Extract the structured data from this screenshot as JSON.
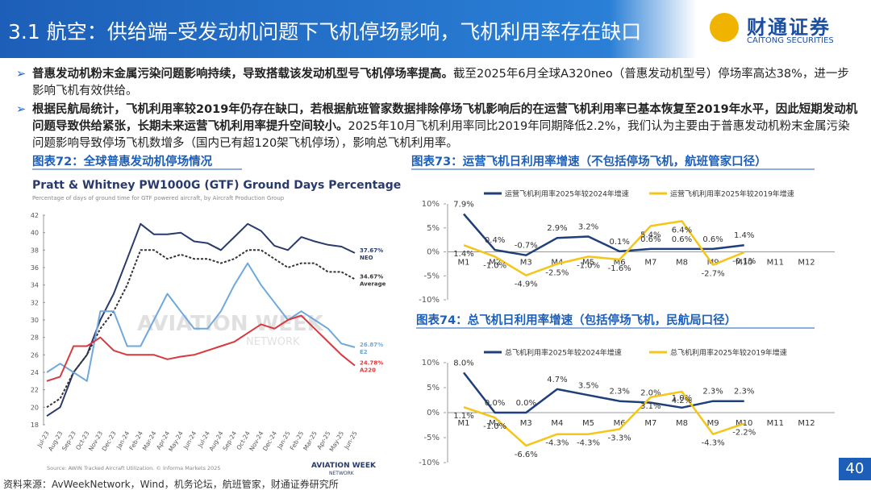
{
  "header": {
    "title": "3.1 航空：供给端–受发动机问题下飞机停场影响，飞机利用率存在缺口",
    "logo_cn": "财通证券",
    "logo_en": "CAITONG SECURITIES"
  },
  "bullets": [
    {
      "bold": "普惠发动机粉末金属污染问题影响持续，导致搭载该发动机型号飞机停场率提高。",
      "text": "截至2025年6月全球A320neo（普惠发动机型号）停场率高达38%，进一步影响飞机有效供给。"
    },
    {
      "bold": "根据民航局统计，飞机利用率较2019年仍存在缺口，若根据航班管家数据排除停场飞机影响后的在运营飞机利用率已基本恢复至2019年水平，因此短期发动机问题导致供给紧张，长期未来运营飞机利用率提升空间较小。",
      "text": "2025年10月飞机利用率同比2019年同期降低2.2%，我们认为主要由于普惠发动机粉末金属污染问题影响导致停场飞机数增多（国内已有超120架飞机停场），影响总飞机利用率。"
    }
  ],
  "chart_data": [
    {
      "type": "line",
      "caption": "图表72：全球普惠发动机停场情况",
      "title": "Pratt & Whitney PW1000G (GTF) Ground Days Percentage",
      "subtitle": "Percentage of days of ground time for GTF powered aircraft, by Aircraft Production Group",
      "watermark": "AVIATION WEEK",
      "watermark_sub": "NETWORK",
      "source": "Source: AWIN Tracked Aircraft Utilization. © Informa Markets 2025",
      "logo": "AVIATION WEEK",
      "logo_sub": "NETWORK",
      "categories": [
        "Jul-23",
        "Aug-23",
        "Sep-23",
        "Oct-23",
        "Nov-23",
        "Dec-23",
        "Jan-24",
        "Feb-24",
        "Mar-24",
        "Apr-24",
        "May-24",
        "Jun-24",
        "Jul-24",
        "Aug-24",
        "Sep-24",
        "Oct-24",
        "Nov-24",
        "Dec-24",
        "Jan-25",
        "Feb-25",
        "Mar-25",
        "Apr-25",
        "May-25",
        "Jun-25"
      ],
      "series": [
        {
          "name": "NEO",
          "color": "#2a3b6b",
          "end_label": "37.67%",
          "values": [
            19,
            20,
            24,
            26,
            30,
            33,
            37,
            41,
            39.8,
            39.8,
            40,
            39,
            38.8,
            38,
            39.5,
            41,
            40.2,
            38.5,
            38,
            39.5,
            39,
            38.6,
            38.4,
            37.67
          ]
        },
        {
          "name": "Average",
          "color": "#333333",
          "style": "dashed",
          "end_label": "34.67%",
          "values": [
            20,
            21,
            24,
            26,
            29,
            31,
            34,
            38,
            38,
            37,
            37.5,
            37,
            37,
            36.5,
            37,
            38,
            38,
            37,
            36,
            36.5,
            36.5,
            35.5,
            35.5,
            34.67
          ]
        },
        {
          "name": "E2",
          "color": "#6fa8dc",
          "end_label": "26.87%",
          "values": [
            24,
            25,
            24,
            23,
            31,
            31,
            27,
            27,
            30,
            33,
            31,
            29,
            29,
            31,
            34,
            36.5,
            34,
            32,
            30,
            31,
            30,
            29,
            27.3,
            26.87
          ]
        },
        {
          "name": "A220",
          "color": "#d9393e",
          "end_label": "24.78%",
          "values": [
            23,
            23.5,
            27,
            27,
            28,
            26.5,
            26,
            26,
            26,
            25.5,
            25.8,
            26,
            26.5,
            27,
            27.5,
            28.5,
            29.5,
            29,
            30,
            30.5,
            29,
            27.5,
            26,
            24.78
          ]
        }
      ],
      "ylim": [
        18,
        42
      ],
      "yticks": [
        18,
        20,
        22,
        24,
        26,
        28,
        30,
        32,
        34,
        36,
        38,
        40,
        42
      ],
      "grid": false
    },
    {
      "type": "line",
      "caption": "图表73：运营飞机日利用率增速（不包括停场飞机，航班管家口径）",
      "categories": [
        "M1",
        "M2",
        "M3",
        "M4",
        "M5",
        "M6",
        "M7",
        "M8",
        "M9",
        "M10",
        "M11",
        "M12"
      ],
      "series": [
        {
          "name": "运营飞机利用率2025年较2024年增速",
          "color": "#1f3f7a",
          "values": [
            7.9,
            0.4,
            -0.7,
            2.9,
            3.2,
            0.1,
            0.6,
            0.6,
            0.6,
            1.4,
            null,
            null
          ],
          "value_labels": [
            "7.9%",
            "0.4%",
            "-0.7%",
            "2.9%",
            "3.2%",
            "0.1%",
            "0.6%",
            "0.6%",
            "0.6%",
            "1.4%",
            null,
            null
          ]
        },
        {
          "name": "运营飞机利用率2025年较2019年增速",
          "color": "#f5c518",
          "values": [
            1.4,
            -1.0,
            -4.9,
            -2.5,
            -1.0,
            -1.6,
            5.4,
            6.4,
            -2.7,
            -0.1,
            null,
            null
          ],
          "value_labels": [
            "1.4%",
            "-1.0%",
            "-4.9%",
            "-2.5%",
            "-1.0%",
            "-1.6%",
            "5.4%",
            "6.4%",
            "-2.7%",
            "-0.1%",
            null,
            null
          ]
        }
      ],
      "ylim": [
        -10,
        10
      ],
      "yticks": [
        {
          "value": -10,
          "label": "-10%"
        },
        {
          "value": -5,
          "label": "-5%"
        },
        {
          "value": 0,
          "label": "0%"
        },
        {
          "value": 5,
          "label": "5%"
        },
        {
          "value": 10,
          "label": "10%"
        }
      ],
      "legend": "top"
    },
    {
      "type": "line",
      "caption": "图表74：总飞机日利用率增速（包括停场飞机，民航局口径）",
      "categories": [
        "M1",
        "M2",
        "M3",
        "M4",
        "M5",
        "M6",
        "M7",
        "M8",
        "M9",
        "M10",
        "M11",
        "M12"
      ],
      "series": [
        {
          "name": "总飞机利用率2025年较2024年增速",
          "color": "#1f3f7a",
          "values": [
            8.0,
            0.0,
            0.0,
            4.7,
            3.5,
            2.3,
            2.0,
            1.0,
            2.3,
            2.3,
            null,
            null
          ],
          "value_labels": [
            "8.0%",
            "0.0%",
            "0.0%",
            "4.7%",
            "3.5%",
            "2.3%",
            "2.0%",
            "1.0%",
            "2.3%",
            "2.3%",
            null,
            null
          ]
        },
        {
          "name": "总飞机利用率2025年较2019年增速",
          "color": "#f5c518",
          "values": [
            1.1,
            -1.0,
            -6.6,
            -4.3,
            -4.3,
            -3.3,
            3.1,
            4.2,
            -4.3,
            -2.2,
            null,
            null
          ],
          "value_labels": [
            "1.1%",
            "-1.0%",
            "-6.6%",
            "-4.3%",
            "-4.3%",
            "-3.3%",
            "3.1%",
            "4.2%",
            "-4.3%",
            "-2.2%",
            null,
            null
          ]
        }
      ],
      "ylim": [
        -10,
        10
      ],
      "yticks": [
        {
          "value": -10,
          "label": "-10%"
        },
        {
          "value": -5,
          "label": "-5%"
        },
        {
          "value": 0,
          "label": "0%"
        },
        {
          "value": 5,
          "label": "5%"
        },
        {
          "value": 10,
          "label": "10%"
        }
      ],
      "legend": "top"
    }
  ],
  "footer": {
    "source": "资料来源：AvWeekNetwork，Wind，机务论坛，航班管家，财通证券研究所",
    "page": "40"
  }
}
